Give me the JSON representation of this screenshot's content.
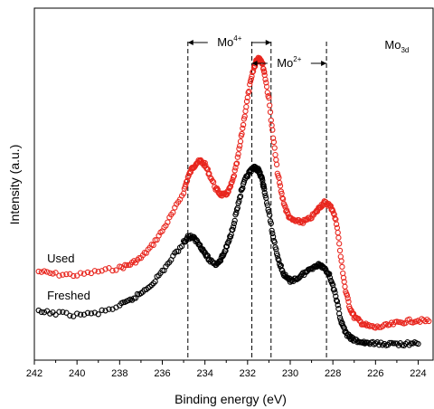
{
  "chart_data": {
    "type": "scatter",
    "xlabel": "Binding energy (eV)",
    "ylabel": "Intensity (a.u.)",
    "xlim": [
      242,
      223.3
    ],
    "x_reversed": true,
    "x_ticks": [
      "242",
      "240",
      "238",
      "236",
      "234",
      "232",
      "230",
      "228",
      "226",
      "224"
    ],
    "y_ticks_shown": false,
    "legend": "none",
    "series": [
      {
        "name": "Used",
        "color": "#e8261e",
        "marker": "hollow-circle",
        "x": [
          241.8,
          241.0,
          240.0,
          239.0,
          238.0,
          237.5,
          237.0,
          236.5,
          236.0,
          235.5,
          235.0,
          234.8,
          234.6,
          234.4,
          234.2,
          234.0,
          233.8,
          233.5,
          233.3,
          233.1,
          232.9,
          232.7,
          232.5,
          232.3,
          232.1,
          231.9,
          231.7,
          231.6,
          231.5,
          231.4,
          231.3,
          231.2,
          231.0,
          230.8,
          230.6,
          230.4,
          230.2,
          230.0,
          229.7,
          229.4,
          229.1,
          228.8,
          228.6,
          228.4,
          228.2,
          228.0,
          227.8,
          227.6,
          227.4,
          227.2,
          227.0,
          226.7,
          226.4,
          226.0,
          225.5,
          225.0,
          224.5,
          224.0,
          223.5
        ],
        "y": [
          300,
          303,
          304,
          300,
          296,
          292,
          285,
          272,
          255,
          235,
          212,
          196,
          186,
          180,
          178,
          182,
          192,
          208,
          214,
          216,
          212,
          200,
          180,
          152,
          122,
          95,
          75,
          68,
          64,
          65,
          70,
          82,
          110,
          152,
          190,
          215,
          232,
          242,
          245,
          245,
          242,
          235,
          228,
          224,
          226,
          232,
          250,
          290,
          322,
          340,
          350,
          356,
          360,
          362,
          360,
          357,
          355,
          354,
          355
        ]
      },
      {
        "name": "Freshed",
        "color": "#000000",
        "marker": "hollow-circle",
        "x": [
          241.8,
          241.0,
          240.0,
          239.0,
          238.0,
          237.5,
          237.0,
          236.5,
          236.0,
          235.5,
          235.0,
          234.8,
          234.6,
          234.4,
          234.2,
          234.0,
          233.8,
          233.5,
          233.3,
          233.1,
          232.9,
          232.7,
          232.5,
          232.3,
          232.1,
          231.9,
          231.7,
          231.6,
          231.5,
          231.4,
          231.3,
          231.2,
          231.0,
          230.8,
          230.6,
          230.4,
          230.2,
          230.0,
          229.7,
          229.4,
          229.1,
          228.8,
          228.6,
          228.4,
          228.2,
          228.0,
          227.8,
          227.6,
          227.4,
          227.2,
          227.0,
          226.7,
          226.4,
          226.0,
          225.5,
          225.0,
          224.5,
          224.0
        ],
        "y": [
          345,
          346,
          348,
          346,
          338,
          332,
          324,
          314,
          300,
          284,
          268,
          262,
          262,
          266,
          272,
          280,
          287,
          292,
          288,
          280,
          268,
          252,
          232,
          212,
          198,
          190,
          186,
          186,
          188,
          193,
          200,
          212,
          235,
          262,
          283,
          298,
          307,
          310,
          308,
          303,
          298,
          293,
          293,
          296,
          302,
          315,
          335,
          356,
          368,
          373,
          376,
          378,
          379,
          380,
          380,
          380,
          380,
          380
        ]
      }
    ],
    "labels": [
      {
        "text": "Used",
        "x": 241.4,
        "y": 290
      },
      {
        "text": "Freshed",
        "x": 241.4,
        "y": 331
      }
    ],
    "reference_lines": [
      {
        "x": 234.8,
        "style": "dashed",
        "color": "#000000"
      },
      {
        "x": 231.8,
        "style": "dashed",
        "color": "#000000"
      },
      {
        "x": 230.9,
        "style": "dashed",
        "color": "#000000"
      },
      {
        "x": 228.3,
        "style": "dashed",
        "color": "#000000"
      }
    ],
    "annotations": [
      {
        "base": "Mo",
        "sup": "4+",
        "kind": "bracket-both",
        "x_from": 234.8,
        "x_to": 230.9,
        "y": 47
      },
      {
        "base": "Mo",
        "sup": "2+",
        "kind": "bracket-both",
        "x_from": 231.8,
        "x_to": 228.3,
        "y": 70
      },
      {
        "base": "Mo",
        "sub": "3d",
        "kind": "text",
        "x": 225.0,
        "y": 54
      }
    ]
  }
}
